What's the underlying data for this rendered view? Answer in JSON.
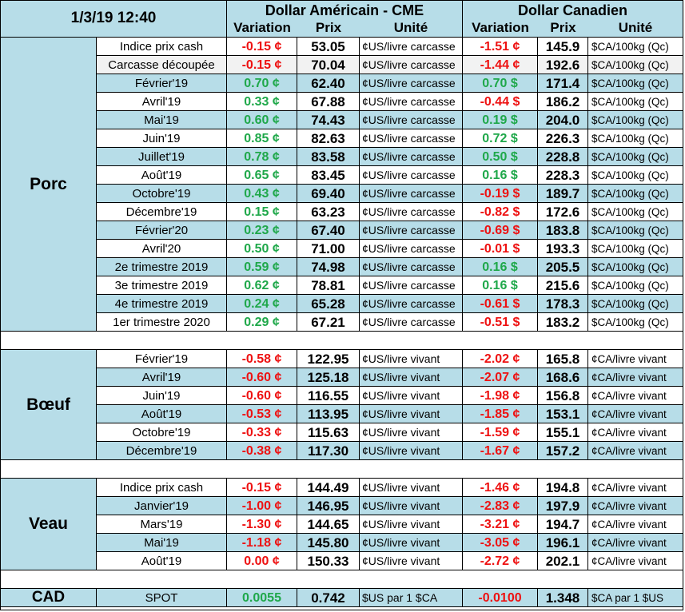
{
  "header": {
    "datetime": "1/3/19 12:40",
    "us_title": "Dollar Américain - CME",
    "ca_title": "Dollar Canadien",
    "variation": "Variation",
    "prix": "Prix",
    "unite": "Unité"
  },
  "groups": [
    {
      "name": "Porc",
      "rows": [
        {
          "label": "Indice prix cash",
          "us_var": "-0.15 ¢",
          "us_sign": "neg",
          "us_prix": "53.05",
          "us_unit": "¢US/livre carcasse",
          "ca_var": "-1.51 ¢",
          "ca_sign": "neg",
          "ca_prix": "145.9",
          "ca_unit": "$CA/100kg (Qc)"
        },
        {
          "label": "Carcasse découpée",
          "us_var": "-0.15 ¢",
          "us_sign": "neg",
          "us_prix": "70.04",
          "us_unit": "¢US/livre carcasse",
          "ca_var": "-1.44 ¢",
          "ca_sign": "neg",
          "ca_prix": "192.6",
          "ca_unit": "$CA/100kg (Qc)"
        },
        {
          "label": "Février'19",
          "us_var": "0.70 ¢",
          "us_sign": "pos",
          "us_prix": "62.40",
          "us_unit": "¢US/livre carcasse",
          "ca_var": "0.70 $",
          "ca_sign": "pos",
          "ca_prix": "171.4",
          "ca_unit": "$CA/100kg (Qc)"
        },
        {
          "label": "Avril'19",
          "us_var": "0.33 ¢",
          "us_sign": "pos",
          "us_prix": "67.88",
          "us_unit": "¢US/livre carcasse",
          "ca_var": "-0.44 $",
          "ca_sign": "neg",
          "ca_prix": "186.2",
          "ca_unit": "$CA/100kg (Qc)"
        },
        {
          "label": "Mai'19",
          "us_var": "0.60 ¢",
          "us_sign": "pos",
          "us_prix": "74.43",
          "us_unit": "¢US/livre carcasse",
          "ca_var": "0.19 $",
          "ca_sign": "pos",
          "ca_prix": "204.0",
          "ca_unit": "$CA/100kg (Qc)"
        },
        {
          "label": "Juin'19",
          "us_var": "0.85 ¢",
          "us_sign": "pos",
          "us_prix": "82.63",
          "us_unit": "¢US/livre carcasse",
          "ca_var": "0.72 $",
          "ca_sign": "pos",
          "ca_prix": "226.3",
          "ca_unit": "$CA/100kg (Qc)"
        },
        {
          "label": "Juillet'19",
          "us_var": "0.78 ¢",
          "us_sign": "pos",
          "us_prix": "83.58",
          "us_unit": "¢US/livre carcasse",
          "ca_var": "0.50 $",
          "ca_sign": "pos",
          "ca_prix": "228.8",
          "ca_unit": "$CA/100kg (Qc)"
        },
        {
          "label": "Août'19",
          "us_var": "0.65 ¢",
          "us_sign": "pos",
          "us_prix": "83.45",
          "us_unit": "¢US/livre carcasse",
          "ca_var": "0.16 $",
          "ca_sign": "pos",
          "ca_prix": "228.3",
          "ca_unit": "$CA/100kg (Qc)"
        },
        {
          "label": "Octobre'19",
          "us_var": "0.43 ¢",
          "us_sign": "pos",
          "us_prix": "69.40",
          "us_unit": "¢US/livre carcasse",
          "ca_var": "-0.19 $",
          "ca_sign": "neg",
          "ca_prix": "189.7",
          "ca_unit": "$CA/100kg (Qc)"
        },
        {
          "label": "Décembre'19",
          "us_var": "0.15 ¢",
          "us_sign": "pos",
          "us_prix": "63.23",
          "us_unit": "¢US/livre carcasse",
          "ca_var": "-0.82 $",
          "ca_sign": "neg",
          "ca_prix": "172.6",
          "ca_unit": "$CA/100kg (Qc)"
        },
        {
          "label": "Février'20",
          "us_var": "0.23 ¢",
          "us_sign": "pos",
          "us_prix": "67.40",
          "us_unit": "¢US/livre carcasse",
          "ca_var": "-0.69 $",
          "ca_sign": "neg",
          "ca_prix": "183.8",
          "ca_unit": "$CA/100kg (Qc)"
        },
        {
          "label": "Avril'20",
          "us_var": "0.50 ¢",
          "us_sign": "pos",
          "us_prix": "71.00",
          "us_unit": "¢US/livre carcasse",
          "ca_var": "-0.01 $",
          "ca_sign": "neg",
          "ca_prix": "193.3",
          "ca_unit": "$CA/100kg (Qc)"
        },
        {
          "label": "2e trimestre 2019",
          "us_var": "0.59 ¢",
          "us_sign": "pos",
          "us_prix": "74.98",
          "us_unit": "¢US/livre carcasse",
          "ca_var": "0.16 $",
          "ca_sign": "pos",
          "ca_prix": "205.5",
          "ca_unit": "$CA/100kg (Qc)"
        },
        {
          "label": "3e trimestre 2019",
          "us_var": "0.62 ¢",
          "us_sign": "pos",
          "us_prix": "78.81",
          "us_unit": "¢US/livre carcasse",
          "ca_var": "0.16 $",
          "ca_sign": "pos",
          "ca_prix": "215.6",
          "ca_unit": "$CA/100kg (Qc)"
        },
        {
          "label": "4e trimestre 2019",
          "us_var": "0.24 ¢",
          "us_sign": "pos",
          "us_prix": "65.28",
          "us_unit": "¢US/livre carcasse",
          "ca_var": "-0.61 $",
          "ca_sign": "neg",
          "ca_prix": "178.3",
          "ca_unit": "$CA/100kg (Qc)"
        },
        {
          "label": "1er trimestre 2020",
          "us_var": "0.29 ¢",
          "us_sign": "pos",
          "us_prix": "67.21",
          "us_unit": "¢US/livre carcasse",
          "ca_var": "-0.51 $",
          "ca_sign": "neg",
          "ca_prix": "183.2",
          "ca_unit": "$CA/100kg (Qc)"
        }
      ]
    },
    {
      "name": "Bœuf",
      "rows": [
        {
          "label": "Février'19",
          "us_var": "-0.58 ¢",
          "us_sign": "neg",
          "us_prix": "122.95",
          "us_unit": "¢US/livre vivant",
          "ca_var": "-2.02 ¢",
          "ca_sign": "neg",
          "ca_prix": "165.8",
          "ca_unit": "¢CA/livre vivant"
        },
        {
          "label": "Avril'19",
          "us_var": "-0.60 ¢",
          "us_sign": "neg",
          "us_prix": "125.18",
          "us_unit": "¢US/livre vivant",
          "ca_var": "-2.07 ¢",
          "ca_sign": "neg",
          "ca_prix": "168.6",
          "ca_unit": "¢CA/livre vivant"
        },
        {
          "label": "Juin'19",
          "us_var": "-0.60 ¢",
          "us_sign": "neg",
          "us_prix": "116.55",
          "us_unit": "¢US/livre vivant",
          "ca_var": "-1.98 ¢",
          "ca_sign": "neg",
          "ca_prix": "156.8",
          "ca_unit": "¢CA/livre vivant"
        },
        {
          "label": "Août'19",
          "us_var": "-0.53 ¢",
          "us_sign": "neg",
          "us_prix": "113.95",
          "us_unit": "¢US/livre vivant",
          "ca_var": "-1.85 ¢",
          "ca_sign": "neg",
          "ca_prix": "153.1",
          "ca_unit": "¢CA/livre vivant"
        },
        {
          "label": "Octobre'19",
          "us_var": "-0.33 ¢",
          "us_sign": "neg",
          "us_prix": "115.63",
          "us_unit": "¢US/livre vivant",
          "ca_var": "-1.59 ¢",
          "ca_sign": "neg",
          "ca_prix": "155.1",
          "ca_unit": "¢CA/livre vivant"
        },
        {
          "label": "Décembre'19",
          "us_var": "-0.38 ¢",
          "us_sign": "neg",
          "us_prix": "117.30",
          "us_unit": "¢US/livre vivant",
          "ca_var": "-1.67 ¢",
          "ca_sign": "neg",
          "ca_prix": "157.2",
          "ca_unit": "¢CA/livre vivant"
        }
      ]
    },
    {
      "name": "Veau",
      "rows": [
        {
          "label": "Indice prix cash",
          "us_var": "-0.15 ¢",
          "us_sign": "neg",
          "us_prix": "144.49",
          "us_unit": "¢US/livre vivant",
          "ca_var": "-1.46 ¢",
          "ca_sign": "neg",
          "ca_prix": "194.8",
          "ca_unit": "¢CA/livre vivant"
        },
        {
          "label": "Janvier'19",
          "us_var": "-1.00 ¢",
          "us_sign": "neg",
          "us_prix": "146.95",
          "us_unit": "¢US/livre vivant",
          "ca_var": "-2.83 ¢",
          "ca_sign": "neg",
          "ca_prix": "197.9",
          "ca_unit": "¢CA/livre vivant"
        },
        {
          "label": "Mars'19",
          "us_var": "-1.30 ¢",
          "us_sign": "neg",
          "us_prix": "144.65",
          "us_unit": "¢US/livre vivant",
          "ca_var": "-3.21 ¢",
          "ca_sign": "neg",
          "ca_prix": "194.7",
          "ca_unit": "¢CA/livre vivant"
        },
        {
          "label": "Mai'19",
          "us_var": "-1.18 ¢",
          "us_sign": "neg",
          "us_prix": "145.80",
          "us_unit": "¢US/livre vivant",
          "ca_var": "-3.05 ¢",
          "ca_sign": "neg",
          "ca_prix": "196.1",
          "ca_unit": "¢CA/livre vivant"
        },
        {
          "label": "Août'19",
          "us_var": "0.00 ¢",
          "us_sign": "neg",
          "us_prix": "150.33",
          "us_unit": "¢US/livre vivant",
          "ca_var": "-2.72 ¢",
          "ca_sign": "neg",
          "ca_prix": "202.1",
          "ca_unit": "¢CA/livre vivant"
        }
      ]
    }
  ],
  "cad": {
    "name": "CAD",
    "label": "SPOT",
    "us_var": "0.0055",
    "us_sign": "pos",
    "us_prix": "0.742",
    "us_unit": "$US par 1 $CA",
    "ca_var": "-0.0100",
    "ca_sign": "neg",
    "ca_prix": "1.348",
    "ca_unit": "$CA par 1 $US"
  },
  "colors": {
    "header_bg": "#b7dde8",
    "row_blue": "#b7dde8",
    "row_grey": "#f2f2f2",
    "positive": "#1fa84a",
    "negative": "#ee1111"
  }
}
